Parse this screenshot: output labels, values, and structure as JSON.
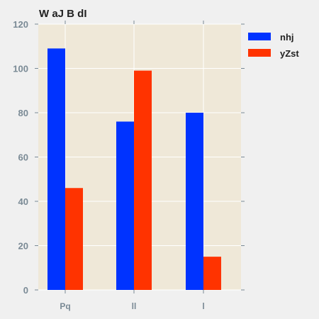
{
  "chart_data": {
    "type": "bar",
    "title": "W aJ B dI",
    "categories": [
      "Pq",
      "ll",
      "l"
    ],
    "series": [
      {
        "name": "nhj",
        "values": [
          109,
          76,
          80
        ],
        "color": "#0033ff"
      },
      {
        "name": "yZst",
        "values": [
          46,
          99,
          15
        ],
        "color": "#ff3300"
      }
    ],
    "ylim": [
      0,
      120
    ],
    "yticks": [
      0,
      20,
      40,
      60,
      80,
      100,
      120
    ],
    "grid": true,
    "legend_position": "right",
    "plot_background": "#efe8d8",
    "page_background": "#f0f0f0"
  }
}
